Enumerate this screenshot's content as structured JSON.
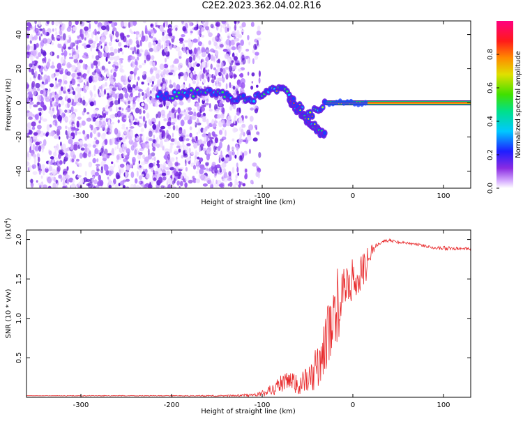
{
  "title": "C2E2.2023.362.04.02.R16",
  "chart_data": [
    {
      "type": "heatmap",
      "xlabel": "Height of straight line (km)",
      "ylabel": "Frequency (Hz)",
      "xlim": [
        -360,
        130
      ],
      "ylim": [
        -50,
        48
      ],
      "xticks": [
        "-300",
        "-200",
        "-100",
        "0",
        "100"
      ],
      "xtick_values": [
        -300,
        -200,
        -100,
        0,
        100
      ],
      "yticks": [
        "40",
        "20",
        "0",
        "-20",
        "-40"
      ],
      "ytick_values": [
        40,
        20,
        0,
        -20,
        -40
      ],
      "colorbar": {
        "label": "Normalized spectral amplitude",
        "range": [
          0.0,
          1.0
        ],
        "ticks": [
          "0.0",
          "0.2",
          "0.4",
          "0.6",
          "0.8"
        ],
        "tick_values": [
          0.0,
          0.2,
          0.4,
          0.6,
          0.8
        ],
        "colormap": "rainbow (white-purple-blue-cyan-green-yellow-orange-red-magenta)"
      },
      "features": {
        "noise_region_x": [
          -360,
          -110
        ],
        "signal_track": [
          {
            "x": -215,
            "y": 4
          },
          {
            "x": -190,
            "y": 5
          },
          {
            "x": -160,
            "y": 6
          },
          {
            "x": -130,
            "y": 3
          },
          {
            "x": -110,
            "y": 2
          },
          {
            "x": -100,
            "y": 4
          },
          {
            "x": -85,
            "y": 9
          },
          {
            "x": -70,
            "y": 6
          },
          {
            "x": -60,
            "y": -2
          },
          {
            "x": -50,
            "y": -8
          },
          {
            "x": -40,
            "y": -4
          },
          {
            "x": -30,
            "y": 0
          },
          {
            "x": 0,
            "y": 1
          },
          {
            "x": 130,
            "y": 0
          }
        ],
        "descending_branch": [
          {
            "x": -70,
            "y": 2
          },
          {
            "x": -55,
            "y": -8
          },
          {
            "x": -45,
            "y": -13
          },
          {
            "x": -30,
            "y": -20
          }
        ],
        "steady_line": {
          "x": [
            -30,
            130
          ],
          "y": 0
        }
      }
    },
    {
      "type": "line",
      "xlabel": "Height of straight line (km)",
      "ylabel": "SNR (10 * v/v)",
      "multiplier": "(x10",
      "multiplier_exp": "4",
      "multiplier_close": ")",
      "xlim": [
        -360,
        130
      ],
      "ylim": [
        0,
        2.12
      ],
      "xticks": [
        "-300",
        "-200",
        "-100",
        "0",
        "100"
      ],
      "xtick_values": [
        -300,
        -200,
        -100,
        0,
        100
      ],
      "yticks": [
        "2.0",
        "1.5",
        "1.0",
        "0.5"
      ],
      "ytick_values": [
        2.0,
        1.5,
        1.0,
        0.5
      ],
      "color": "#e8282a",
      "series": [
        {
          "x": [
            -360,
            -300,
            -200,
            -140,
            -110,
            -100,
            -90,
            -80,
            -70,
            -60,
            -50,
            -45,
            -40,
            -35,
            -30,
            -25,
            -20,
            -15,
            -10,
            -5,
            0,
            5,
            10,
            15,
            20,
            25,
            30,
            40,
            50,
            60,
            70,
            80,
            90,
            100,
            110,
            120,
            130
          ],
          "values": [
            0.02,
            0.02,
            0.02,
            0.02,
            0.03,
            0.05,
            0.1,
            0.18,
            0.2,
            0.18,
            0.22,
            0.3,
            0.4,
            0.55,
            0.7,
            0.95,
            1.15,
            1.25,
            1.35,
            1.45,
            1.5,
            1.55,
            1.6,
            1.7,
            1.85,
            1.92,
            1.97,
            1.99,
            1.97,
            1.96,
            1.94,
            1.92,
            1.9,
            1.89,
            1.89,
            1.88,
            1.88
          ],
          "noise": [
            0.0,
            0.005,
            0.005,
            0.01,
            0.02,
            0.04,
            0.08,
            0.12,
            0.15,
            0.15,
            0.18,
            0.22,
            0.28,
            0.32,
            0.4,
            0.45,
            0.5,
            0.45,
            0.35,
            0.3,
            0.28,
            0.25,
            0.25,
            0.2,
            0.1,
            0.04,
            0.03,
            0.02,
            0.02,
            0.02,
            0.02,
            0.02,
            0.02,
            0.03,
            0.02,
            0.02,
            0.02
          ]
        }
      ]
    }
  ]
}
